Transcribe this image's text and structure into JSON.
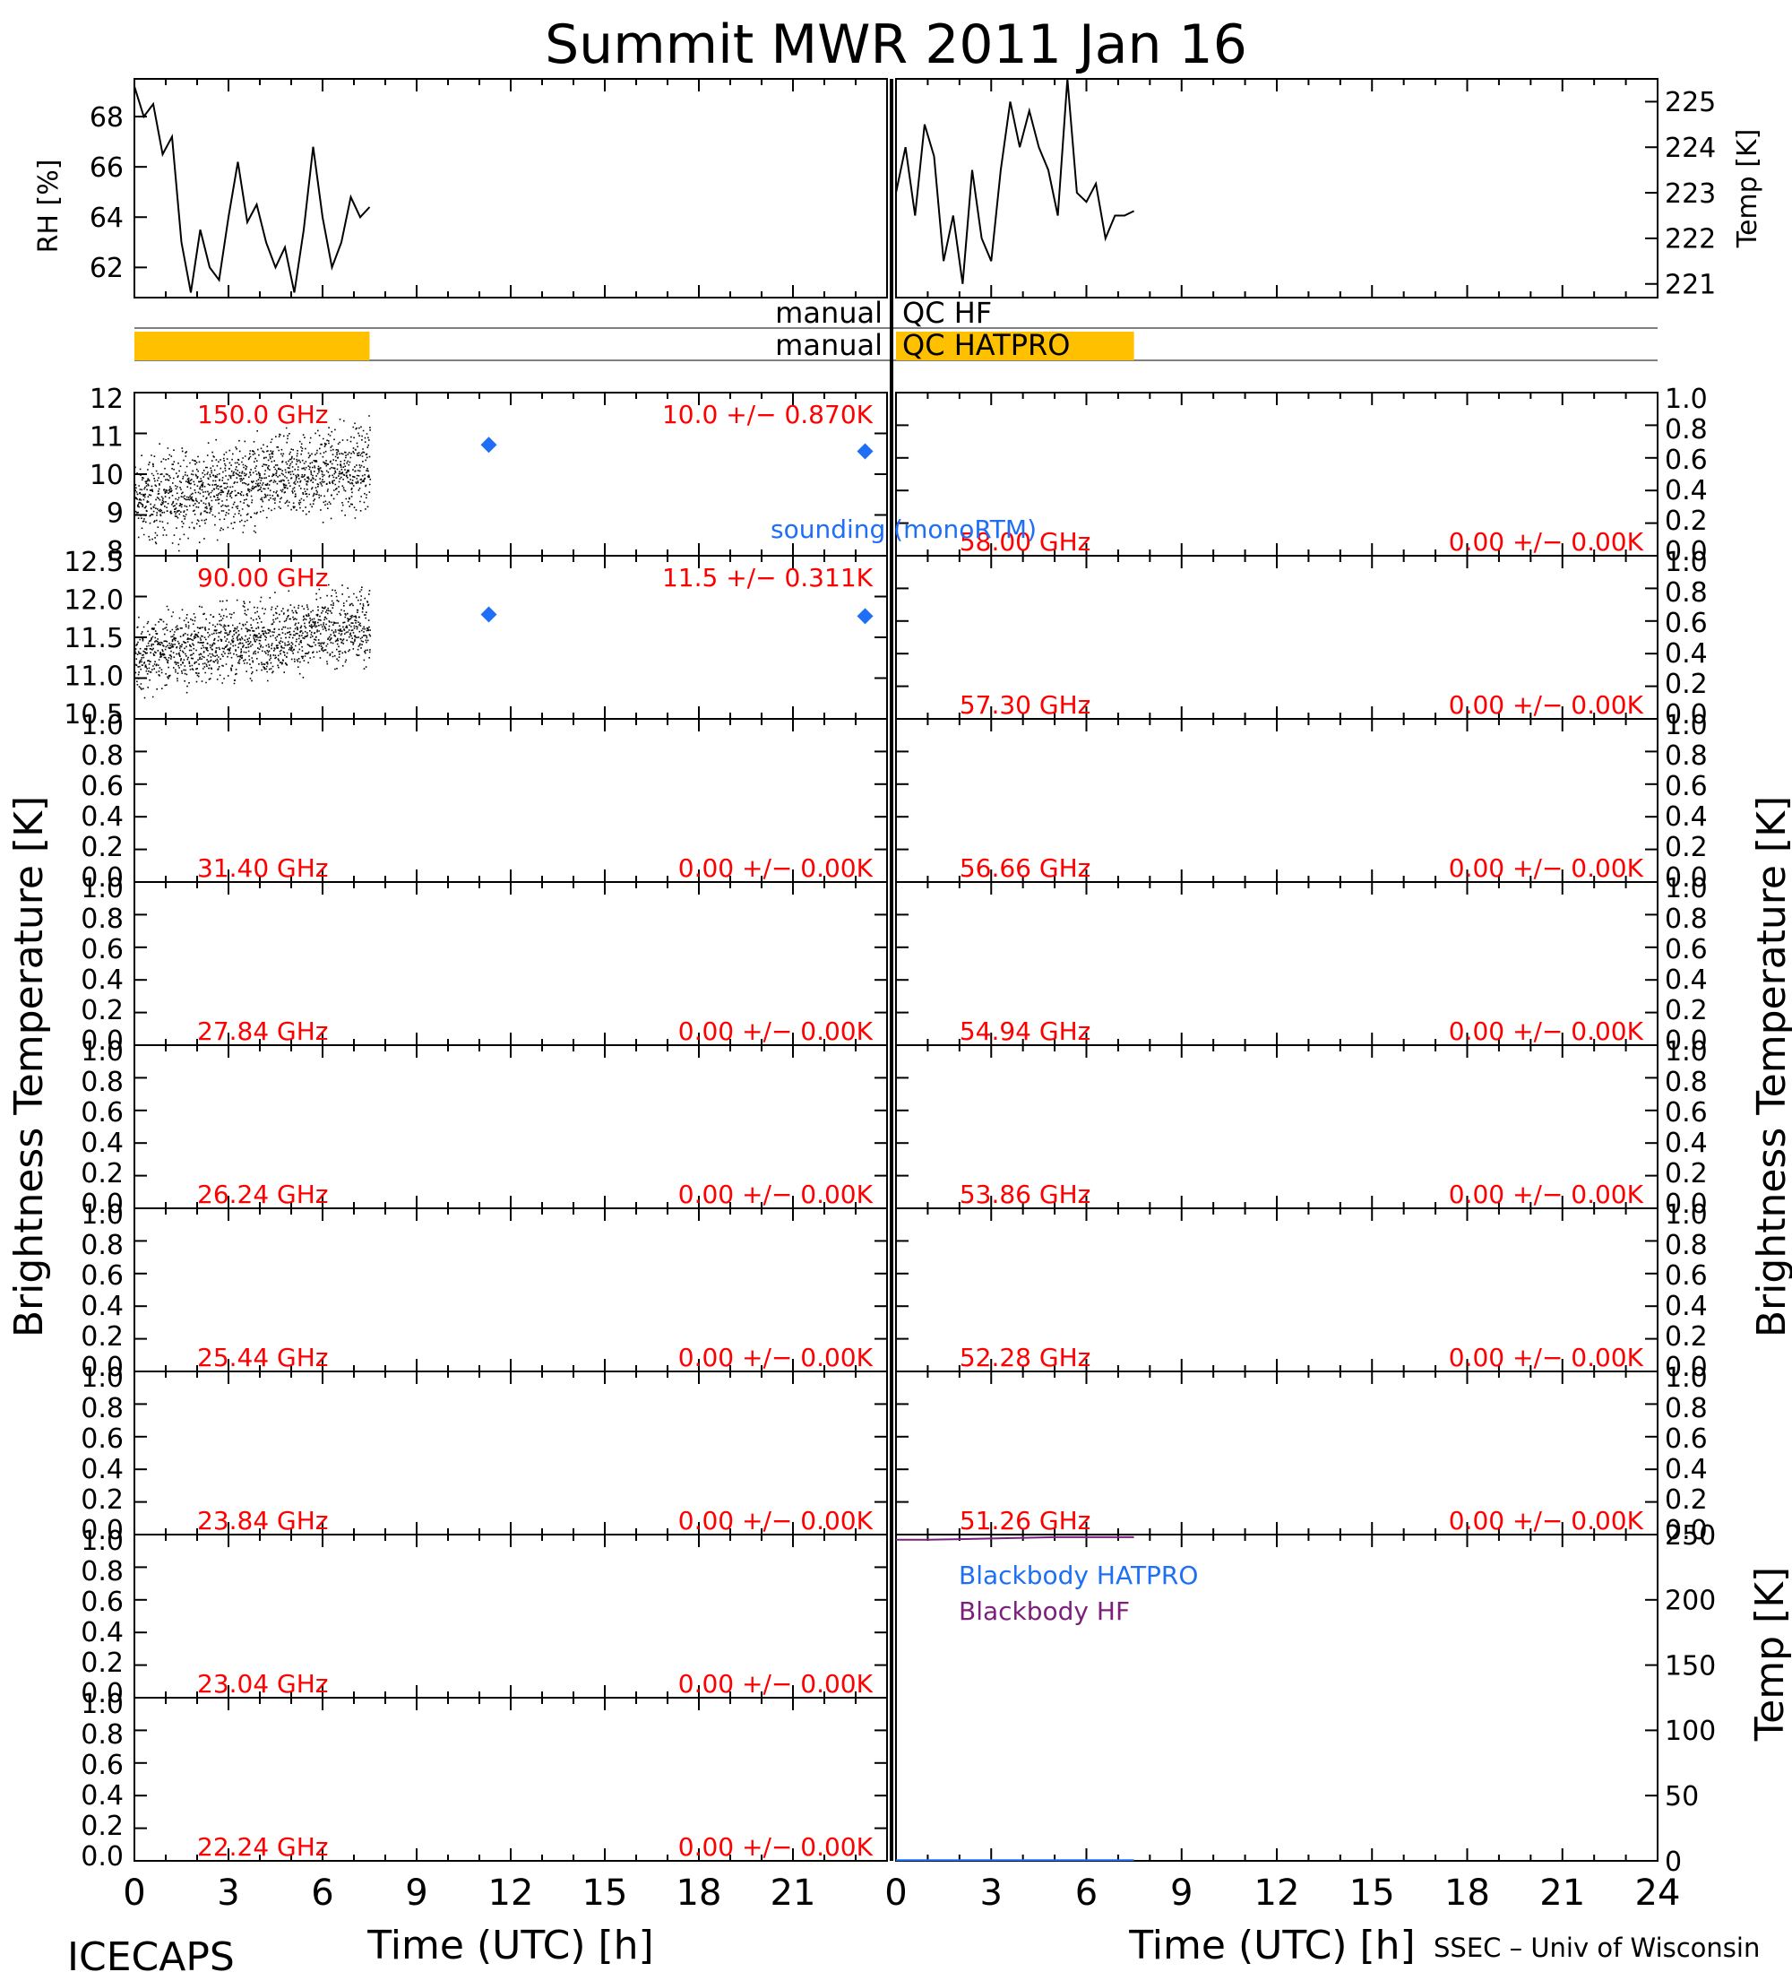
{
  "title": "Summit MWR 2011 Jan 16",
  "footer_left": "ICECAPS",
  "footer_right": "SSEC – Univ of Wisconsin",
  "x_axis": {
    "label": "Time (UTC) [h]",
    "range": [
      0,
      24
    ],
    "ticks": [
      "0",
      "3",
      "6",
      "9",
      "12",
      "15",
      "18",
      "21"
    ],
    "ticks_right": [
      "0",
      "3",
      "6",
      "9",
      "12",
      "15",
      "18",
      "21",
      "24"
    ]
  },
  "qc_bars": [
    {
      "label": "manual",
      "name": "QC HF",
      "bad_fraction": 0.0
    },
    {
      "label": "manual",
      "name": "QC HATPRO",
      "bad_fraction": 0.3125
    }
  ],
  "colors": {
    "annotation": "#ff0000",
    "sounding": "#1e6ff5",
    "qc_bad": "#ffc000",
    "blackbody_hatpro": "#1e6ff5",
    "blackbody_hf": "#7a1f7a",
    "trace": "#000000"
  },
  "labels": {
    "sounding": "sounding (monoRTM)",
    "tb_axis": "Brightness Temperature [K]",
    "rh_axis": "RH [%]",
    "temp_axis": "Temp [K]"
  },
  "chart_data": [
    {
      "type": "line",
      "panel": "surface-rh",
      "ylabel": "RH [%]",
      "ylim": [
        60.8,
        69.5
      ],
      "yticks": [
        "62",
        "64",
        "66",
        "68"
      ],
      "x": [
        0,
        0.3,
        0.6,
        0.9,
        1.2,
        1.5,
        1.8,
        2.1,
        2.4,
        2.7,
        3.0,
        3.3,
        3.6,
        3.9,
        4.2,
        4.5,
        4.8,
        5.1,
        5.4,
        5.7,
        6.0,
        6.3,
        6.6,
        6.9,
        7.2,
        7.5
      ],
      "y": [
        69.2,
        68.0,
        68.5,
        66.5,
        67.2,
        63.0,
        61.0,
        63.5,
        62.0,
        61.5,
        64.0,
        66.2,
        63.8,
        64.5,
        63.0,
        62.0,
        62.8,
        61.0,
        63.5,
        66.8,
        64.0,
        62.0,
        63.0,
        64.8,
        64.0,
        64.4
      ]
    },
    {
      "type": "line",
      "panel": "surface-temp",
      "ylabel": "Temp [K]",
      "ylim": [
        220.7,
        225.5
      ],
      "yticks": [
        "221",
        "222",
        "223",
        "224",
        "225"
      ],
      "x": [
        0,
        0.3,
        0.6,
        0.9,
        1.2,
        1.5,
        1.8,
        2.1,
        2.4,
        2.7,
        3.0,
        3.3,
        3.6,
        3.9,
        4.2,
        4.5,
        4.8,
        5.1,
        5.4,
        5.7,
        6.0,
        6.3,
        6.6,
        6.9,
        7.2,
        7.5
      ],
      "y": [
        223.0,
        224.0,
        222.5,
        224.5,
        223.8,
        221.5,
        222.5,
        221.0,
        223.5,
        222.0,
        221.5,
        223.5,
        225.0,
        224.0,
        224.8,
        224.0,
        223.5,
        222.5,
        225.5,
        223.0,
        222.8,
        223.2,
        222.0,
        222.5,
        222.5,
        222.6
      ]
    },
    {
      "type": "scatter",
      "panel": "tb-left-1",
      "frequency": "150.0 GHz",
      "stats": "10.0 +/− 0.870K",
      "ylim": [
        7.5,
        12.5
      ],
      "yticks": [
        "8",
        "9",
        "10",
        "11",
        "12"
      ],
      "obs_mean_start": 9.2,
      "obs_mean_end": 10.3,
      "obs_spread": 0.87,
      "obs_end_hour": 7.5,
      "sounding_x": [
        11.3,
        23.3
      ],
      "sounding_y": [
        10.9,
        10.7
      ]
    },
    {
      "type": "scatter",
      "panel": "tb-left-2",
      "frequency": "90.00 GHz",
      "stats": "11.5 +/− 0.311K",
      "ylim": [
        10.5,
        12.5
      ],
      "yticks": [
        "10.5",
        "11.0",
        "11.5",
        "12.0",
        "12.5"
      ],
      "obs_mean_start": 11.3,
      "obs_mean_end": 11.65,
      "obs_spread": 0.31,
      "obs_end_hour": 7.5,
      "sounding_x": [
        11.3,
        23.3
      ],
      "sounding_y": [
        11.78,
        11.76
      ]
    },
    {
      "type": "scatter",
      "panel": "tb-left-3",
      "frequency": "31.40 GHz",
      "stats": "0.00 +/− 0.00K",
      "ylim": [
        0,
        1
      ],
      "yticks": [
        "0.0",
        "0.2",
        "0.4",
        "0.6",
        "0.8",
        "1.0"
      ]
    },
    {
      "type": "scatter",
      "panel": "tb-left-4",
      "frequency": "27.84 GHz",
      "stats": "0.00 +/− 0.00K",
      "ylim": [
        0,
        1
      ],
      "yticks": [
        "0.0",
        "0.2",
        "0.4",
        "0.6",
        "0.8",
        "1.0"
      ]
    },
    {
      "type": "scatter",
      "panel": "tb-left-5",
      "frequency": "26.24 GHz",
      "stats": "0.00 +/− 0.00K",
      "ylim": [
        0,
        1
      ],
      "yticks": [
        "0.0",
        "0.2",
        "0.4",
        "0.6",
        "0.8",
        "1.0"
      ]
    },
    {
      "type": "scatter",
      "panel": "tb-left-6",
      "frequency": "25.44 GHz",
      "stats": "0.00 +/− 0.00K",
      "ylim": [
        0,
        1
      ],
      "yticks": [
        "0.0",
        "0.2",
        "0.4",
        "0.6",
        "0.8",
        "1.0"
      ]
    },
    {
      "type": "scatter",
      "panel": "tb-left-7",
      "frequency": "23.84 GHz",
      "stats": "0.00 +/− 0.00K",
      "ylim": [
        0,
        1
      ],
      "yticks": [
        "0.0",
        "0.2",
        "0.4",
        "0.6",
        "0.8",
        "1.0"
      ]
    },
    {
      "type": "scatter",
      "panel": "tb-left-8",
      "frequency": "23.04 GHz",
      "stats": "0.00 +/− 0.00K",
      "ylim": [
        0,
        1
      ],
      "yticks": [
        "0.0",
        "0.2",
        "0.4",
        "0.6",
        "0.8",
        "1.0"
      ]
    },
    {
      "type": "scatter",
      "panel": "tb-left-9",
      "frequency": "22.24 GHz",
      "stats": "0.00 +/− 0.00K",
      "ylim": [
        0,
        1
      ],
      "yticks": [
        "0.0",
        "0.2",
        "0.4",
        "0.6",
        "0.8",
        "1.0"
      ]
    },
    {
      "type": "scatter",
      "panel": "tb-right-1",
      "frequency": "58.00 GHz",
      "stats": "0.00 +/− 0.00K",
      "ylim": [
        0,
        1
      ],
      "yticks": [
        "0.0",
        "0.2",
        "0.4",
        "0.6",
        "0.8",
        "1.0"
      ]
    },
    {
      "type": "scatter",
      "panel": "tb-right-2",
      "frequency": "57.30 GHz",
      "stats": "0.00 +/− 0.00K",
      "ylim": [
        0,
        1
      ],
      "yticks": [
        "0.0",
        "0.2",
        "0.4",
        "0.6",
        "0.8",
        "1.0"
      ]
    },
    {
      "type": "scatter",
      "panel": "tb-right-3",
      "frequency": "56.66 GHz",
      "stats": "0.00 +/− 0.00K",
      "ylim": [
        0,
        1
      ],
      "yticks": [
        "0.0",
        "0.2",
        "0.4",
        "0.6",
        "0.8",
        "1.0"
      ]
    },
    {
      "type": "scatter",
      "panel": "tb-right-4",
      "frequency": "54.94 GHz",
      "stats": "0.00 +/− 0.00K",
      "ylim": [
        0,
        1
      ],
      "yticks": [
        "0.0",
        "0.2",
        "0.4",
        "0.6",
        "0.8",
        "1.0"
      ]
    },
    {
      "type": "scatter",
      "panel": "tb-right-5",
      "frequency": "53.86 GHz",
      "stats": "0.00 +/− 0.00K",
      "ylim": [
        0,
        1
      ],
      "yticks": [
        "0.0",
        "0.2",
        "0.4",
        "0.6",
        "0.8",
        "1.0"
      ]
    },
    {
      "type": "scatter",
      "panel": "tb-right-6",
      "frequency": "52.28 GHz",
      "stats": "0.00 +/− 0.00K",
      "ylim": [
        0,
        1
      ],
      "yticks": [
        "0.0",
        "0.2",
        "0.4",
        "0.6",
        "0.8",
        "1.0"
      ]
    },
    {
      "type": "scatter",
      "panel": "tb-right-7",
      "frequency": "51.26 GHz",
      "stats": "0.00 +/− 0.00K",
      "ylim": [
        0,
        1
      ],
      "yticks": [
        "0.0",
        "0.2",
        "0.4",
        "0.6",
        "0.8",
        "1.0"
      ]
    },
    {
      "type": "line",
      "panel": "blackbody",
      "ylabel": "Temp [K]",
      "ylim": [
        0,
        250
      ],
      "yticks": [
        "0",
        "50",
        "100",
        "150",
        "200",
        "250"
      ],
      "series": [
        {
          "name": "Blackbody HATPRO",
          "x": [
            0,
            7.5
          ],
          "y": [
            0.5,
            0.5
          ]
        },
        {
          "name": "Blackbody HF",
          "x": [
            0,
            1,
            2,
            3,
            4,
            5,
            6,
            7,
            7.5
          ],
          "y": [
            246,
            246,
            246.5,
            247,
            247.5,
            248,
            248,
            248,
            248
          ]
        }
      ]
    }
  ]
}
